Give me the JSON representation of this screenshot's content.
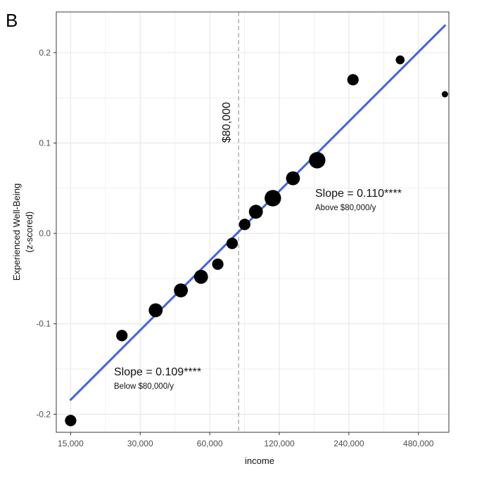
{
  "panel_label": "B",
  "chart_data": {
    "type": "scatter",
    "xlabel": "income",
    "ylabel_line1": "Experienced Well-Being",
    "ylabel_line2": "(z-scored)",
    "x_scale": "log2",
    "xlim": [
      13000,
      650000
    ],
    "ylim": [
      -0.22,
      0.245
    ],
    "x_ticks": [
      15000,
      30000,
      60000,
      120000,
      240000,
      480000
    ],
    "x_tick_labels": [
      "15,000",
      "30,000",
      "60,000",
      "120,000",
      "240,000",
      "480,000"
    ],
    "y_ticks": [
      -0.2,
      -0.1,
      0.0,
      0.1,
      0.2
    ],
    "y_tick_labels": [
      "-0.2",
      "-0.1",
      "0.0",
      "0.1",
      "0.2"
    ],
    "threshold": {
      "x": 80000,
      "label": "$80,000"
    },
    "points": [
      {
        "x": 15000,
        "y": -0.207,
        "weight": 2
      },
      {
        "x": 25000,
        "y": -0.113,
        "weight": 2
      },
      {
        "x": 35000,
        "y": -0.085,
        "weight": 3
      },
      {
        "x": 45000,
        "y": -0.063,
        "weight": 3
      },
      {
        "x": 55000,
        "y": -0.048,
        "weight": 3
      },
      {
        "x": 65000,
        "y": -0.034,
        "weight": 2
      },
      {
        "x": 75000,
        "y": -0.011,
        "weight": 2
      },
      {
        "x": 85000,
        "y": 0.01,
        "weight": 2
      },
      {
        "x": 95000,
        "y": 0.024,
        "weight": 3
      },
      {
        "x": 112500,
        "y": 0.039,
        "weight": 4
      },
      {
        "x": 137500,
        "y": 0.061,
        "weight": 3
      },
      {
        "x": 175000,
        "y": 0.081,
        "weight": 4
      },
      {
        "x": 250000,
        "y": 0.17,
        "weight": 2
      },
      {
        "x": 400000,
        "y": 0.192,
        "weight": 1
      },
      {
        "x": 625000,
        "y": 0.154,
        "weight": 0
      }
    ],
    "fit_line": {
      "x": [
        15000,
        625000
      ],
      "y": [
        -0.184,
        0.23
      ],
      "color": "#3e66d6"
    },
    "annotations": {
      "below_slope": "Slope = 0.109****",
      "below_range": "Below $80,000/y",
      "above_slope": "Slope = 0.110****",
      "above_range": "Above $80,000/y"
    }
  },
  "colors": {
    "grid": "#e6e6e6",
    "panel_border": "#3a3a3a",
    "points": "#000000",
    "threshold": "#a6a6a6"
  }
}
